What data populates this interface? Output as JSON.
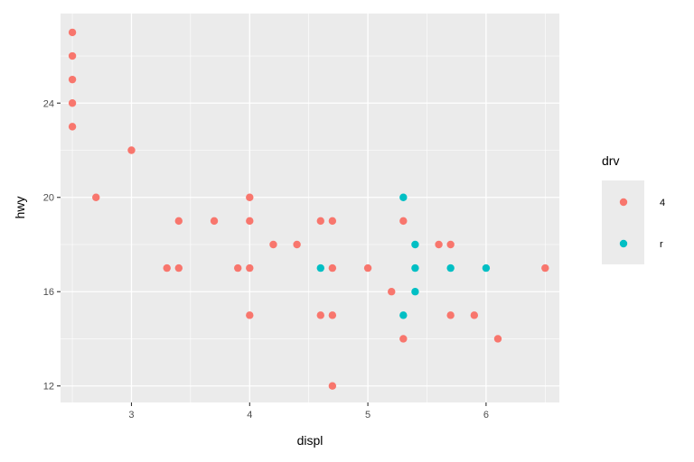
{
  "chart_data": {
    "type": "scatter",
    "title": "",
    "xlabel": "displ",
    "ylabel": "hwy",
    "xlim": [
      2.4,
      6.62
    ],
    "ylim": [
      11.3,
      27.8
    ],
    "x_ticks": [
      3,
      4,
      5,
      6
    ],
    "y_ticks": [
      12,
      16,
      20,
      24
    ],
    "x_tick_labels": [
      "3",
      "4",
      "5",
      "6"
    ],
    "y_tick_labels": [
      "12",
      "16",
      "20",
      "24"
    ],
    "grid": true,
    "legend": {
      "title": "drv",
      "position": "right"
    },
    "colors": {
      "panel": "#EBEBEB",
      "grid": "#FFFFFF",
      "tick": "#333333"
    },
    "series": [
      {
        "name": "4",
        "color": "#F8766D",
        "x": [
          2.5,
          2.5,
          2.5,
          2.5,
          2.5,
          2.7,
          3.0,
          3.3,
          3.4,
          3.4,
          3.7,
          3.9,
          4.0,
          4.0,
          4.0,
          4.0,
          4.2,
          4.4,
          4.6,
          4.6,
          4.7,
          4.7,
          4.7,
          4.7,
          5.0,
          5.2,
          5.3,
          5.3,
          5.6,
          5.7,
          5.7,
          5.9,
          6.1,
          6.5
        ],
        "y": [
          27,
          26,
          25,
          24,
          23,
          20,
          22,
          17,
          19,
          17,
          19,
          17,
          20,
          19,
          17,
          15,
          18,
          18,
          19,
          15,
          19,
          17,
          15,
          12,
          17,
          16,
          19,
          14,
          18,
          18,
          15,
          15,
          14,
          17
        ]
      },
      {
        "name": "r",
        "color": "#00BFC4",
        "x": [
          4.6,
          5.3,
          5.3,
          5.4,
          5.4,
          5.4,
          5.7,
          6.0
        ],
        "y": [
          17,
          20,
          15,
          18,
          17,
          16,
          17,
          17
        ]
      }
    ]
  }
}
